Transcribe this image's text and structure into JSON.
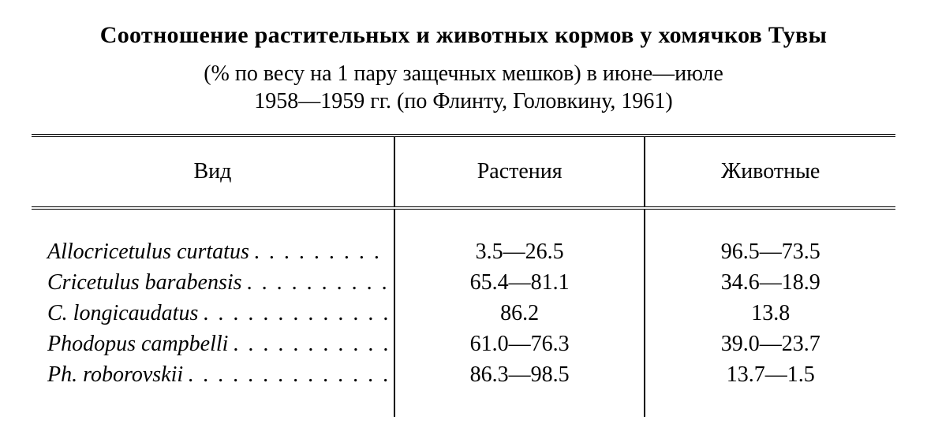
{
  "title": "Соотношение растительных и животных кормов у хомячков Тувы",
  "subtitle_line1": "(% по весу на 1 пару защечных мешков) в июне—июле",
  "subtitle_line2": "1958—1959 гг. (по Флинту, Головкину, 1961)",
  "table": {
    "type": "table",
    "columns": [
      "Вид",
      "Растения",
      "Животные"
    ],
    "col_widths_pct": [
      42,
      29,
      29
    ],
    "column_align": [
      "left",
      "center",
      "center"
    ],
    "border_color": "#000000",
    "rule_style": "double",
    "title_fontsize_pt": 22,
    "body_fontsize_pt": 21,
    "rows": [
      {
        "species": "Allocricetulus curtatus",
        "plants": "3.5—26.5",
        "animals": "96.5—73.5"
      },
      {
        "species": "Cricetulus barabensis",
        "plants": "65.4—81.1",
        "animals": "34.6—18.9"
      },
      {
        "species": "C. longicaudatus",
        "plants": "86.2",
        "animals": "13.8"
      },
      {
        "species": "Phodopus campbelli",
        "plants": "61.0—76.3",
        "animals": "39.0—23.7"
      },
      {
        "species": "Ph. roborovskii",
        "plants": "86.3—98.5",
        "animals": "13.7—1.5"
      }
    ]
  },
  "colors": {
    "background": "#ffffff",
    "text": "#000000",
    "rule": "#000000"
  },
  "dot_leader": "........................"
}
